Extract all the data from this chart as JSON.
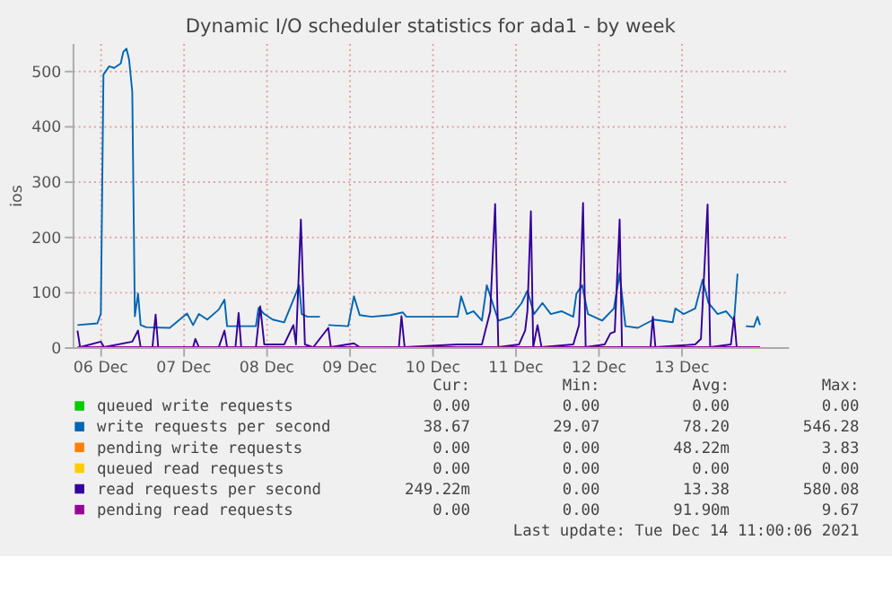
{
  "chart_data": {
    "type": "line",
    "title": "Dynamic I/O scheduler statistics for  ada1 - by week",
    "ylabel": "ios",
    "xlim": [
      "2021-12-06T04:05",
      "2021-12-14T19:00"
    ],
    "ylim": [
      0,
      550
    ],
    "yticks": [
      0,
      100,
      200,
      300,
      400,
      500
    ],
    "xticks": [
      {
        "value": "2021-12-06T12:00",
        "label": "06 Dec"
      },
      {
        "value": "2021-12-07T12:00",
        "label": "07 Dec"
      },
      {
        "value": "2021-12-08T12:00",
        "label": "08 Dec"
      },
      {
        "value": "2021-12-09T12:00",
        "label": "09 Dec"
      },
      {
        "value": "2021-12-10T12:00",
        "label": "10 Dec"
      },
      {
        "value": "2021-12-11T12:00",
        "label": "11 Dec"
      },
      {
        "value": "2021-12-12T12:00",
        "label": "12 Dec"
      },
      {
        "value": "2021-12-13T12:00",
        "label": "13 Dec"
      }
    ],
    "grid": true,
    "legend": "bottom",
    "line_style": "solid",
    "marker": "none",
    "series": [
      {
        "name": "queued write requests",
        "color": "#00cc00"
      },
      {
        "name": "write requests per second",
        "color": "#0066b3",
        "x": [
          "2021-12-06T05:30",
          "2021-12-06T11:15",
          "2021-12-06T12:15",
          "2021-12-06T13:00",
          "2021-12-06T14:40",
          "2021-12-06T16:05",
          "2021-12-06T18:00",
          "2021-12-06T18:45",
          "2021-12-06T19:40",
          "2021-12-06T20:25",
          "2021-12-06T21:20",
          "2021-12-06T22:05",
          "2021-12-06T23:00",
          "2021-12-06T23:45",
          "2021-12-07T01:25",
          "2021-12-07T08:10",
          "2021-12-07T13:10",
          "2021-12-07T14:55",
          "2021-12-07T16:35",
          "2021-12-07T19:00",
          "2021-12-07T22:20",
          "2021-12-08T00:00",
          "2021-12-08T00:45",
          "2021-12-08T09:05",
          "2021-12-08T09:50",
          "2021-12-08T11:30",
          "2021-12-08T13:55",
          "2021-12-08T17:15",
          "2021-12-08T19:55",
          "2021-12-08T21:35",
          "2021-12-08T22:20",
          "2021-12-09T00:00",
          "2021-12-09T03:35",
          "2021-12-09T04:20",
          "2021-12-09T06:00",
          "2021-12-09T11:45",
          "2021-12-09T13:25",
          "2021-12-09T15:05",
          "2021-12-09T18:30",
          "2021-12-10T00:00",
          "2021-12-10T03:35",
          "2021-12-10T04:35",
          "2021-12-10T09:35",
          "2021-12-10T19:25",
          "2021-12-10T20:25",
          "2021-12-10T22:05",
          "2021-12-11T00:00",
          "2021-12-11T02:25",
          "2021-12-11T03:50",
          "2021-12-11T05:30",
          "2021-12-11T07:10",
          "2021-12-11T10:50",
          "2021-12-11T13:55",
          "2021-12-11T15:35",
          "2021-12-11T17:30",
          "2021-12-11T19:55",
          "2021-12-11T22:20",
          "2021-12-12T01:25",
          "2021-12-12T04:50",
          "2021-12-12T05:45",
          "2021-12-12T07:25",
          "2021-12-12T09:05",
          "2021-12-12T13:10",
          "2021-12-12T16:35",
          "2021-12-12T18:15",
          "2021-12-12T19:55",
          "2021-12-12T23:30",
          "2021-12-13T04:05",
          "2021-12-13T09:35",
          "2021-12-13T10:20",
          "2021-12-13T12:45",
          "2021-12-13T16:05",
          "2021-12-13T18:15",
          "2021-12-13T19:55",
          "2021-12-13T22:35",
          "2021-12-14T01:00",
          "2021-12-14T03:20",
          "2021-12-14T04:20",
          "2021-12-14T04:50",
          "2021-12-14T06:45",
          "2021-12-14T09:05",
          "2021-12-14T10:05",
          "2021-12-14T10:50"
        ],
        "values": [
          40,
          43,
          61,
          493,
          508,
          505,
          513,
          534,
          540,
          520,
          462,
          56,
          97,
          40,
          36,
          35,
          61,
          40,
          60,
          50,
          68,
          86,
          38,
          38,
          71,
          60,
          50,
          45,
          86,
          112,
          60,
          55,
          55,
          null,
          40,
          38,
          92,
          58,
          55,
          58,
          63,
          55,
          55,
          55,
          92,
          60,
          65,
          48,
          112,
          80,
          48,
          55,
          80,
          102,
          60,
          80,
          60,
          65,
          55,
          97,
          112,
          60,
          48,
          70,
          133,
          38,
          35,
          50,
          45,
          70,
          60,
          70,
          122,
          80,
          60,
          65,
          48,
          133,
          null,
          38,
          37,
          55,
          40
        ]
      },
      {
        "name": "pending write requests",
        "color": "#ff8000"
      },
      {
        "name": "queued read requests",
        "color": "#ffcc00"
      },
      {
        "name": "read requests per second",
        "color": "#330099",
        "x": [
          "2021-12-06T05:30",
          "2021-12-06T06:15",
          "2021-12-06T12:15",
          "2021-12-06T13:10",
          "2021-12-06T21:20",
          "2021-12-06T23:00",
          "2021-12-06T23:45",
          "2021-12-07T03:10",
          "2021-12-07T04:05",
          "2021-12-07T04:50",
          "2021-12-07T14:55",
          "2021-12-07T15:35",
          "2021-12-07T16:35",
          "2021-12-07T22:20",
          "2021-12-08T00:00",
          "2021-12-08T00:45",
          "2021-12-08T03:10",
          "2021-12-08T04:05",
          "2021-12-08T04:50",
          "2021-12-08T09:05",
          "2021-12-08T10:20",
          "2021-12-08T11:30",
          "2021-12-08T17:15",
          "2021-12-08T19:55",
          "2021-12-08T20:40",
          "2021-12-08T22:05",
          "2021-12-08T23:15",
          "2021-12-09T01:40",
          "2021-12-09T06:00",
          "2021-12-09T06:45",
          "2021-12-09T13:25",
          "2021-12-09T15:05",
          "2021-12-10T02:25",
          "2021-12-10T03:10",
          "2021-12-10T04:05",
          "2021-12-10T19:25",
          "2021-12-11T02:25",
          "2021-12-11T04:50",
          "2021-12-11T06:15",
          "2021-12-11T07:10",
          "2021-12-11T13:10",
          "2021-12-11T14:55",
          "2021-12-11T15:35",
          "2021-12-11T16:35",
          "2021-12-11T17:15",
          "2021-12-11T18:30",
          "2021-12-11T19:40",
          "2021-12-12T04:50",
          "2021-12-12T06:30",
          "2021-12-12T07:40",
          "2021-12-12T08:25",
          "2021-12-12T13:55",
          "2021-12-12T15:35",
          "2021-12-12T16:50",
          "2021-12-12T18:15",
          "2021-12-12T18:55",
          "2021-12-13T03:10",
          "2021-12-13T03:50",
          "2021-12-13T04:35",
          "2021-12-13T16:05",
          "2021-12-13T17:45",
          "2021-12-13T19:40",
          "2021-12-13T20:25",
          "2021-12-14T02:25",
          "2021-12-14T03:20",
          "2021-12-14T04:05",
          "2021-12-14T10:50"
        ],
        "values": [
          30,
          0,
          10,
          0,
          10,
          30,
          0,
          0,
          59,
          0,
          0,
          15,
          0,
          0,
          30,
          0,
          0,
          62,
          0,
          0,
          74,
          5,
          5,
          40,
          5,
          231,
          5,
          0,
          35,
          0,
          7,
          0,
          0,
          56,
          0,
          5,
          5,
          65,
          259,
          0,
          5,
          30,
          65,
          246,
          0,
          40,
          0,
          5,
          40,
          261,
          0,
          5,
          25,
          28,
          231,
          0,
          0,
          55,
          0,
          5,
          15,
          258,
          0,
          5,
          55,
          0,
          0
        ]
      },
      {
        "name": "pending read requests",
        "color": "#990099",
        "x": [
          "2021-12-06T05:30",
          "2021-12-14T10:50"
        ],
        "values": [
          0,
          0
        ]
      }
    ],
    "annotations": [
      "Cur:",
      "Min:",
      "Avg:",
      "Max:",
      "0.00",
      "0.00",
      "0.00",
      "0.00",
      "38.67",
      "29.07",
      "78.20",
      "546.28",
      "0.00",
      "0.00",
      "48.22m",
      "3.83",
      "0.00",
      "0.00",
      "0.00",
      "0.00",
      "249.22m",
      "0.00",
      "13.38",
      "580.08",
      "0.00",
      "0.00",
      "91.90m",
      "9.67",
      "Last update: Tue Dec 14 11:00:06 2021"
    ]
  }
}
